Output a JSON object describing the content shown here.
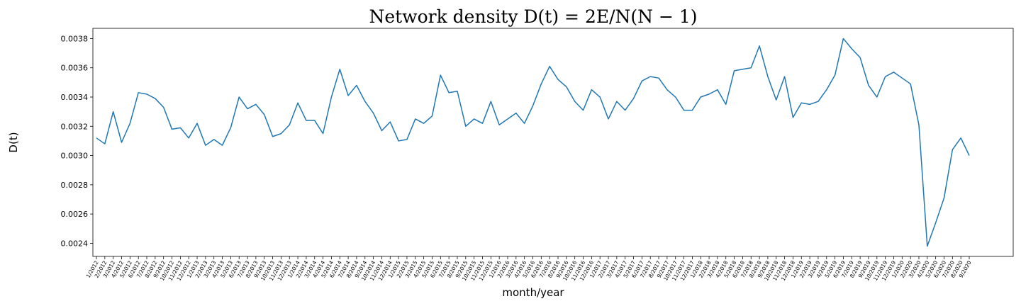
{
  "chart_data": {
    "type": "line",
    "title": "Network density D(t) = 2E/N(N − 1)",
    "xlabel": "month/year",
    "ylabel": "D(t)",
    "ylim": [
      0.00231,
      0.00387
    ],
    "yticks": [
      "0.0024",
      "0.0026",
      "0.0028",
      "0.0030",
      "0.0032",
      "0.0034",
      "0.0036",
      "0.0038"
    ],
    "grid": false,
    "series_color": "#1f77b4",
    "categories": [
      "1/2012",
      "2/2012",
      "3/2012",
      "4/2012",
      "5/2012",
      "6/2012",
      "7/2012",
      "8/2012",
      "9/2012",
      "10/2012",
      "11/2012",
      "12/2012",
      "1/2013",
      "2/2013",
      "3/2013",
      "4/2013",
      "5/2013",
      "6/2013",
      "7/2013",
      "8/2013",
      "9/2013",
      "10/2013",
      "11/2013",
      "12/2013",
      "1/2014",
      "2/2014",
      "3/2014",
      "4/2014",
      "5/2014",
      "6/2014",
      "7/2014",
      "8/2014",
      "9/2014",
      "10/2014",
      "11/2014",
      "12/2014",
      "1/2015",
      "2/2015",
      "3/2015",
      "4/2015",
      "5/2015",
      "6/2015",
      "7/2015",
      "8/2015",
      "9/2015",
      "10/2015",
      "11/2015",
      "12/2015",
      "1/2016",
      "2/2016",
      "3/2016",
      "4/2016",
      "5/2016",
      "6/2016",
      "7/2016",
      "8/2016",
      "9/2016",
      "10/2016",
      "11/2016",
      "12/2016",
      "1/2017",
      "2/2017",
      "3/2017",
      "4/2017",
      "5/2017",
      "6/2017",
      "7/2017",
      "8/2017",
      "9/2017",
      "10/2017",
      "11/2017",
      "12/2017",
      "1/2018",
      "2/2018",
      "3/2018",
      "4/2018",
      "5/2018",
      "6/2018",
      "7/2018",
      "8/2018",
      "9/2018",
      "10/2018",
      "11/2018",
      "12/2018",
      "1/2019",
      "2/2019",
      "3/2019",
      "4/2019",
      "5/2019",
      "6/2019",
      "7/2019",
      "8/2019",
      "9/2019",
      "10/2019",
      "11/2019",
      "12/2019",
      "1/2020",
      "2/2020",
      "3/2020",
      "4/2020",
      "5/2020",
      "6/2020",
      "7/2020",
      "8/2020",
      "9/2020"
    ],
    "values": [
      0.00312,
      0.00308,
      0.0033,
      0.00309,
      0.00322,
      0.00343,
      0.00342,
      0.00339,
      0.00333,
      0.00318,
      0.00319,
      0.00312,
      0.00322,
      0.00307,
      0.00311,
      0.00307,
      0.00319,
      0.0034,
      0.00332,
      0.00335,
      0.00328,
      0.00313,
      0.00315,
      0.00321,
      0.00336,
      0.00324,
      0.00324,
      0.00315,
      0.0034,
      0.00359,
      0.00341,
      0.00348,
      0.00337,
      0.00329,
      0.00317,
      0.00323,
      0.0031,
      0.00311,
      0.00325,
      0.00322,
      0.00327,
      0.00355,
      0.00343,
      0.00344,
      0.0032,
      0.00325,
      0.00322,
      0.00337,
      0.00321,
      0.00325,
      0.00329,
      0.00322,
      0.00334,
      0.00349,
      0.00361,
      0.00352,
      0.00347,
      0.00337,
      0.00331,
      0.00345,
      0.0034,
      0.00325,
      0.00337,
      0.00331,
      0.00339,
      0.00351,
      0.00354,
      0.00353,
      0.00345,
      0.0034,
      0.00331,
      0.00331,
      0.0034,
      0.00342,
      0.00345,
      0.00335,
      0.00358,
      0.00359,
      0.0036,
      0.00375,
      0.00354,
      0.00338,
      0.00354,
      0.00326,
      0.00336,
      0.00335,
      0.00337,
      0.00345,
      0.00355,
      0.0038,
      0.00373,
      0.00367,
      0.00348,
      0.0034,
      0.00354,
      0.00357,
      0.00353,
      0.00349,
      0.00321,
      0.00238,
      0.00254,
      0.00271,
      0.00304,
      0.00312,
      0.003
    ]
  }
}
